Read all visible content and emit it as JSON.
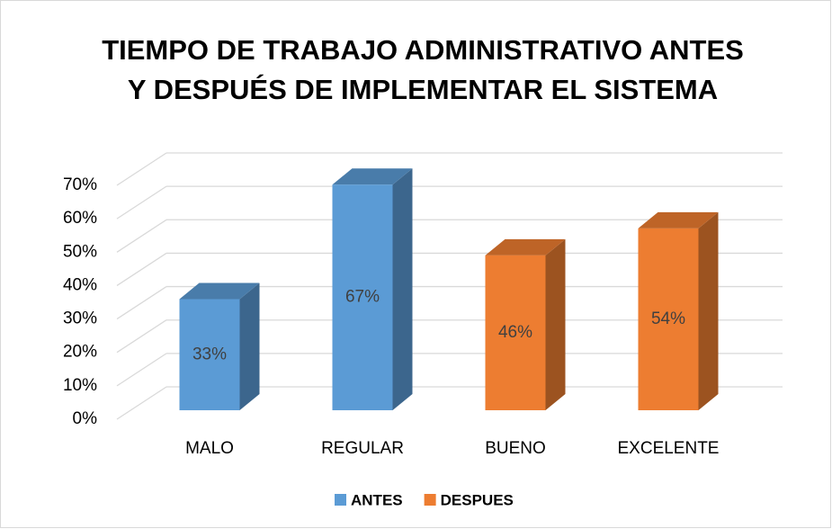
{
  "chart_data": {
    "type": "bar3d",
    "title": "TIEMPO DE TRABAJO ADMINISTRATIVO ANTES",
    "subtitle": "Y DESPUÉS DE IMPLEMENTAR EL SISTEMA",
    "categories": [
      "MALO",
      "REGULAR",
      "BUENO",
      "EXCELENTE"
    ],
    "series": [
      {
        "name": "ANTES",
        "color": "#5b9bd5",
        "values": [
          33,
          67,
          null,
          null
        ],
        "value_labels": [
          "33%",
          "67%",
          null,
          null
        ]
      },
      {
        "name": "DESPUES",
        "color": "#ed7d31",
        "values": [
          null,
          null,
          46,
          54
        ],
        "value_labels": [
          null,
          null,
          "46%",
          "54%"
        ]
      }
    ],
    "ylim": [
      0,
      70
    ],
    "yticks": [
      {
        "value": 0,
        "label": "0%"
      },
      {
        "value": 10,
        "label": "10%"
      },
      {
        "value": 20,
        "label": "20%"
      },
      {
        "value": 30,
        "label": "30%"
      },
      {
        "value": 40,
        "label": "40%"
      },
      {
        "value": 50,
        "label": "50%"
      },
      {
        "value": 60,
        "label": "60%"
      },
      {
        "value": 70,
        "label": "70%"
      }
    ],
    "grid": true,
    "legend": "bottom"
  }
}
